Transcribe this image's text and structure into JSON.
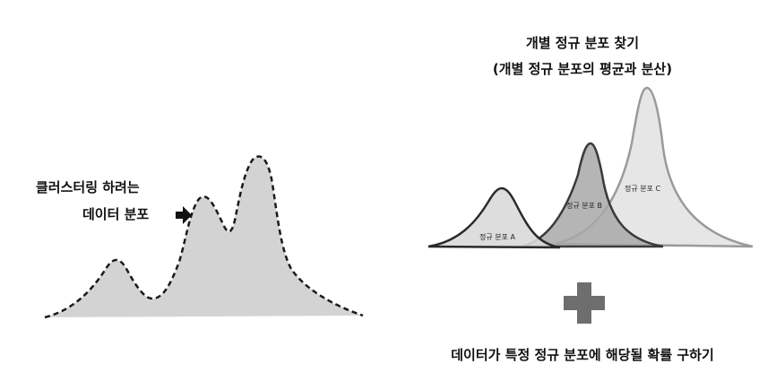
{
  "left_panel": {
    "label_line1": "클러스터링 하려는",
    "label_line2": "데이터 분포"
  },
  "right_panel": {
    "title_line1": "개별 정규 분포 찾기",
    "title_line2": "(개별 정규 분포의 평균과 분산)",
    "distributions": [
      {
        "label": "정규 분포 A",
        "color": "#d9d9d9"
      },
      {
        "label": "정규 분포 B",
        "color": "#a8a8a8"
      },
      {
        "label": "정규 분포 C",
        "color": "#e6e6e6"
      }
    ]
  },
  "bottom_text": "데이터가 특정 정규 분포에 해당될 확률 구하기",
  "colors": {
    "fill_light": "#d3d3d3",
    "outline": "#1a1a1a",
    "plus": "#6e6e6e"
  }
}
